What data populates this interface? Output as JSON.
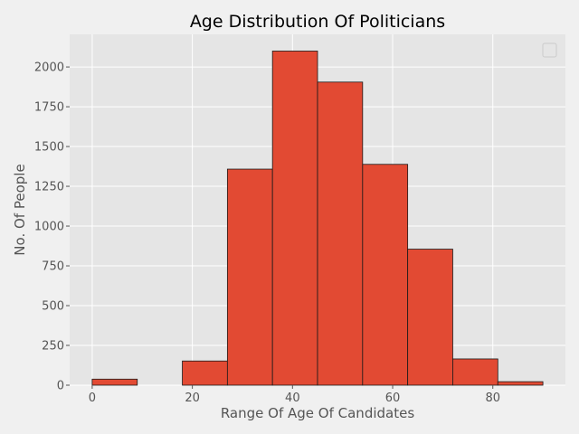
{
  "chart_data": {
    "type": "bar",
    "title": "Age Distribution Of Politicians",
    "xlabel": "Range Of Age Of Candidates",
    "ylabel": "No. Of People",
    "bins": [
      {
        "start": 0,
        "end": 9,
        "count": 38
      },
      {
        "start": 9,
        "end": 18,
        "count": 0
      },
      {
        "start": 18,
        "end": 27,
        "count": 152
      },
      {
        "start": 27,
        "end": 36,
        "count": 1358
      },
      {
        "start": 36,
        "end": 45,
        "count": 2100
      },
      {
        "start": 45,
        "end": 54,
        "count": 1905
      },
      {
        "start": 54,
        "end": 63,
        "count": 1388
      },
      {
        "start": 63,
        "end": 72,
        "count": 855
      },
      {
        "start": 72,
        "end": 81,
        "count": 165
      },
      {
        "start": 81,
        "end": 90,
        "count": 22
      }
    ],
    "xlim": [
      -4.5,
      94.5
    ],
    "ylim": [
      0,
      2205
    ],
    "xticks": [
      0,
      20,
      40,
      60,
      80
    ],
    "yticks": [
      0,
      250,
      500,
      750,
      1000,
      1250,
      1500,
      1750,
      2000
    ],
    "grid": true,
    "legend": "top-right",
    "colors": {
      "bar": "#E24A33",
      "edge": "#1a1a1a",
      "plot_bg": "#E5E5E5",
      "grid": "#FFFFFF"
    }
  }
}
